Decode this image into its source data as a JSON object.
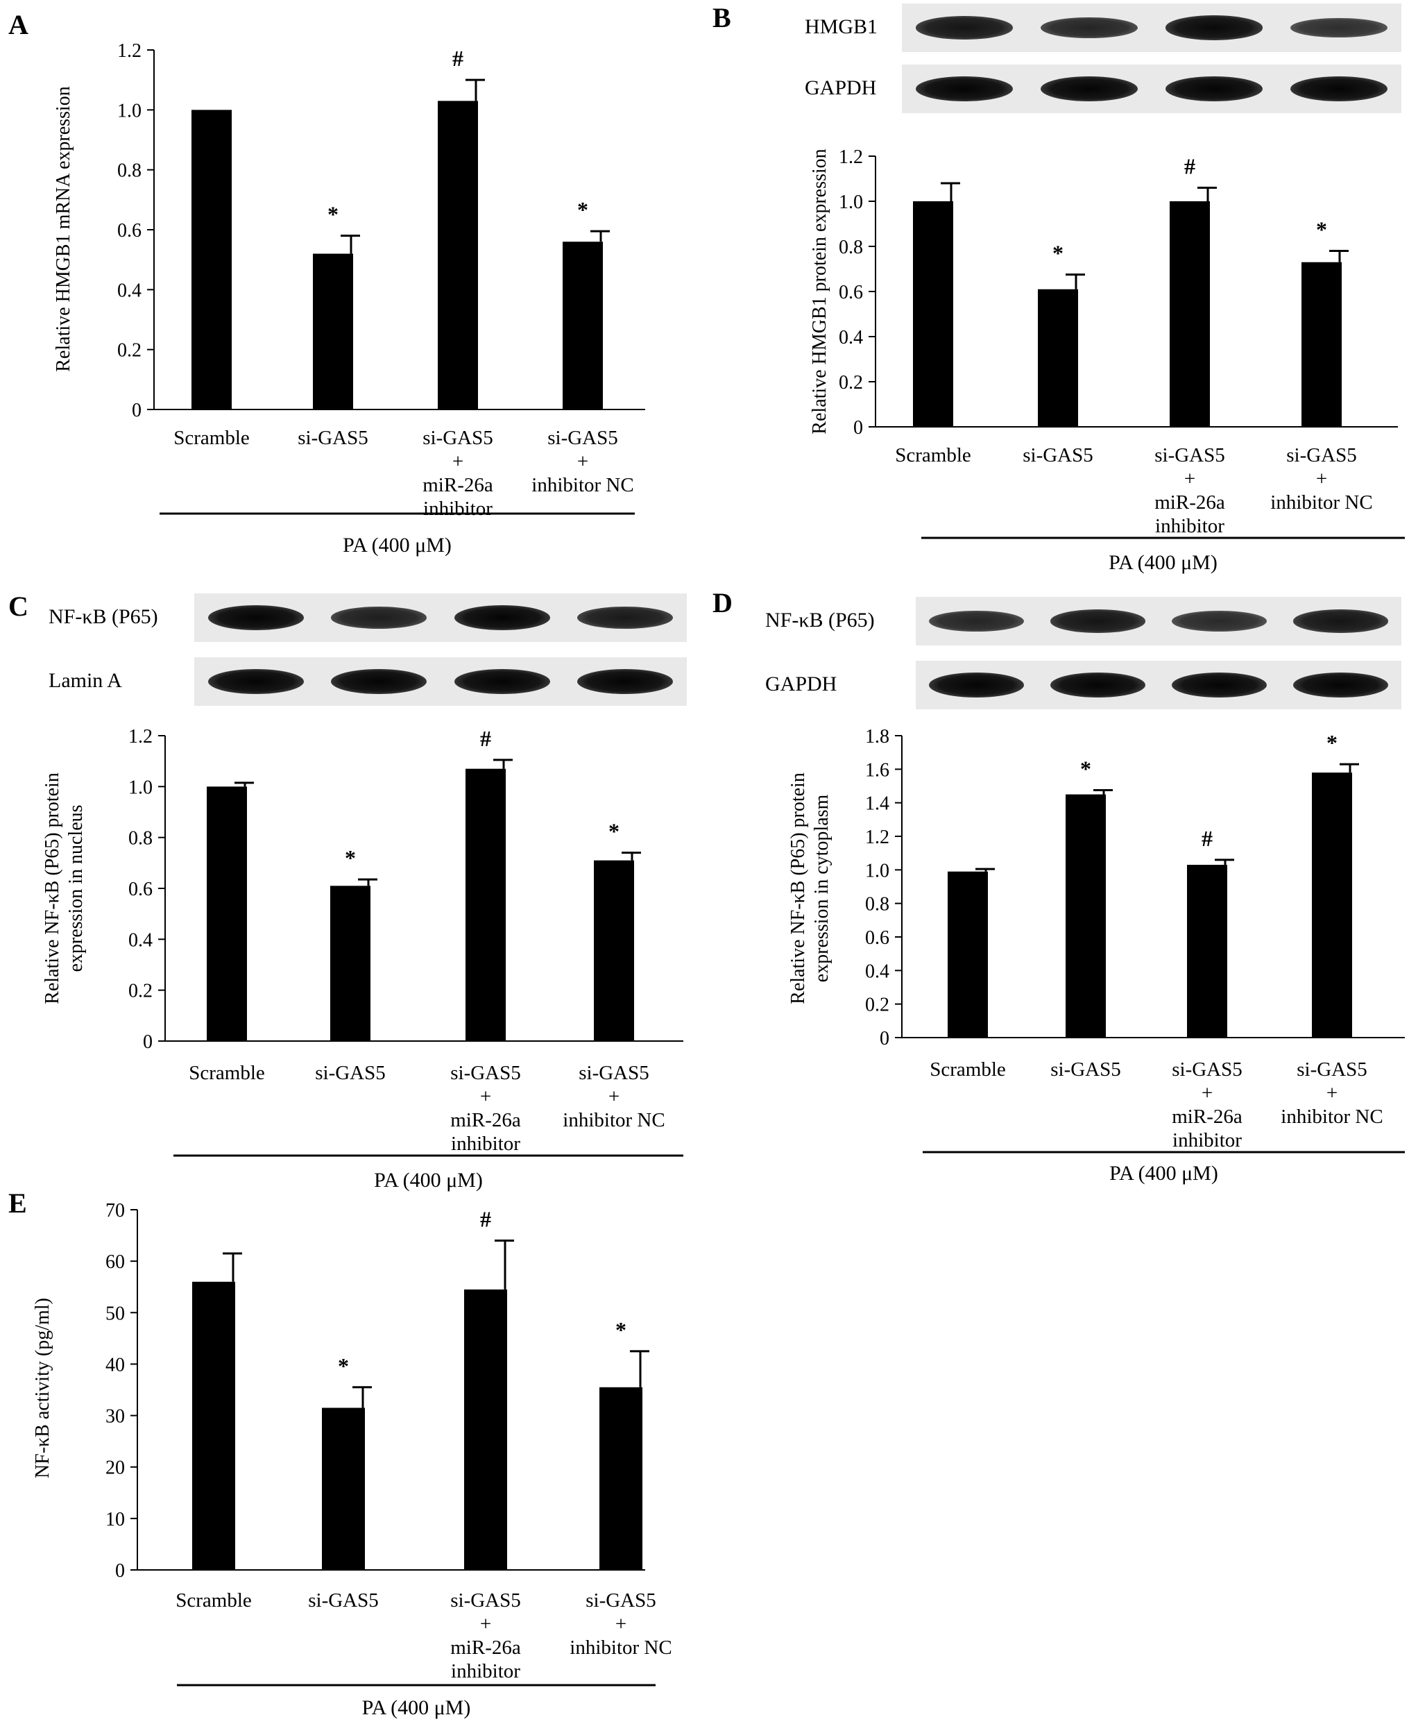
{
  "panels": [
    {
      "id": "A",
      "letter": "A",
      "blots": [],
      "chart": {
        "type": "bar",
        "categories": [
          [
            "Scramble"
          ],
          [
            "si-GAS5"
          ],
          [
            "si-GAS5",
            "+",
            "miR-26a",
            "inhibitor"
          ],
          [
            "si-GAS5",
            "+",
            "inhibitor NC"
          ]
        ],
        "values": [
          1.0,
          0.52,
          1.03,
          0.56
        ],
        "errors": [
          0.0,
          0.06,
          0.07,
          0.035
        ],
        "annotations": [
          "",
          "*",
          "#",
          "*"
        ],
        "ylabel": [
          "Relative HMGB1 mRNA expression"
        ],
        "yticks": [
          "0",
          "0.2",
          "0.4",
          "0.6",
          "0.8",
          "1.0",
          "1.2"
        ],
        "ylim": [
          0,
          1.2
        ],
        "group_label": "PA (400 μM)"
      }
    },
    {
      "id": "B",
      "letter": "B",
      "blots": [
        {
          "label": "HMGB1",
          "intensities": [
            0.85,
            0.7,
            0.95,
            0.6
          ]
        },
        {
          "label": "GAPDH",
          "intensities": [
            1.0,
            1.0,
            1.0,
            1.0
          ]
        }
      ],
      "chart": {
        "type": "bar",
        "categories": [
          [
            "Scramble"
          ],
          [
            "si-GAS5"
          ],
          [
            "si-GAS5",
            "+",
            "miR-26a",
            "inhibitor"
          ],
          [
            "si-GAS5",
            "+",
            "inhibitor NC"
          ]
        ],
        "values": [
          1.0,
          0.61,
          1.0,
          0.73
        ],
        "errors": [
          0.08,
          0.065,
          0.06,
          0.05
        ],
        "annotations": [
          "",
          "*",
          "#",
          "*"
        ],
        "ylabel": [
          "Relative HMGB1 protein expression"
        ],
        "yticks": [
          "0",
          "0.2",
          "0.4",
          "0.6",
          "0.8",
          "1.0",
          "1.2"
        ],
        "ylim": [
          0,
          1.2
        ],
        "group_label": "PA (400 μM)"
      }
    },
    {
      "id": "C",
      "letter": "C",
      "blots": [
        {
          "label": "NF-κB (P65)",
          "intensities": [
            1.0,
            0.75,
            1.0,
            0.8
          ]
        },
        {
          "label": "Lamin A",
          "intensities": [
            1.0,
            1.0,
            1.0,
            1.0
          ]
        }
      ],
      "chart": {
        "type": "bar",
        "categories": [
          [
            "Scramble"
          ],
          [
            "si-GAS5"
          ],
          [
            "si-GAS5",
            "+",
            "miR-26a",
            "inhibitor"
          ],
          [
            "si-GAS5",
            "+",
            "inhibitor NC"
          ]
        ],
        "values": [
          1.0,
          0.61,
          1.07,
          0.71
        ],
        "errors": [
          0.015,
          0.025,
          0.035,
          0.03
        ],
        "annotations": [
          "",
          "*",
          "#",
          "*"
        ],
        "ylabel": [
          "Relative NF-κB (P65) protein",
          "expression in nucleus"
        ],
        "yticks": [
          "0",
          "0.2",
          "0.4",
          "0.6",
          "0.8",
          "1.0",
          "1.2"
        ],
        "ylim": [
          0,
          1.2
        ],
        "group_label": "PA (400 μM)"
      }
    },
    {
      "id": "D",
      "letter": "D",
      "blots": [
        {
          "label": "NF-κB (P65)",
          "intensities": [
            0.7,
            0.85,
            0.65,
            0.85
          ]
        },
        {
          "label": "GAPDH",
          "intensities": [
            1.0,
            1.0,
            1.0,
            1.0
          ]
        }
      ],
      "chart": {
        "type": "bar",
        "categories": [
          [
            "Scramble"
          ],
          [
            "si-GAS5"
          ],
          [
            "si-GAS5",
            "+",
            "miR-26a",
            "inhibitor"
          ],
          [
            "si-GAS5",
            "+",
            "inhibitor NC"
          ]
        ],
        "values": [
          0.99,
          1.45,
          1.03,
          1.58
        ],
        "errors": [
          0.015,
          0.025,
          0.03,
          0.05
        ],
        "annotations": [
          "",
          "*",
          "#",
          "*"
        ],
        "ylabel": [
          "Relative NF-κB (P65) protein",
          "expression in cytoplasm"
        ],
        "yticks": [
          "0",
          "0.2",
          "0.4",
          "0.6",
          "0.8",
          "1.0",
          "1.2",
          "1.4",
          "1.6",
          "1.8"
        ],
        "ylim": [
          0,
          1.8
        ],
        "group_label": "PA (400 μM)"
      }
    },
    {
      "id": "E",
      "letter": "E",
      "blots": [],
      "chart": {
        "type": "bar",
        "categories": [
          [
            "Scramble"
          ],
          [
            "si-GAS5"
          ],
          [
            "si-GAS5",
            "+",
            "miR-26a",
            "inhibitor"
          ],
          [
            "si-GAS5",
            "+",
            "inhibitor NC"
          ]
        ],
        "values": [
          56,
          31.5,
          54.5,
          35.5
        ],
        "errors": [
          5.5,
          4.0,
          9.5,
          7.0
        ],
        "annotations": [
          "",
          "*",
          "#",
          "*"
        ],
        "ylabel": [
          "NF-κB activity (pg/ml)"
        ],
        "yticks": [
          "0",
          "10",
          "20",
          "30",
          "40",
          "50",
          "60",
          "70"
        ],
        "ylim": [
          0,
          70
        ],
        "group_label": "PA (400 μM)"
      }
    }
  ]
}
